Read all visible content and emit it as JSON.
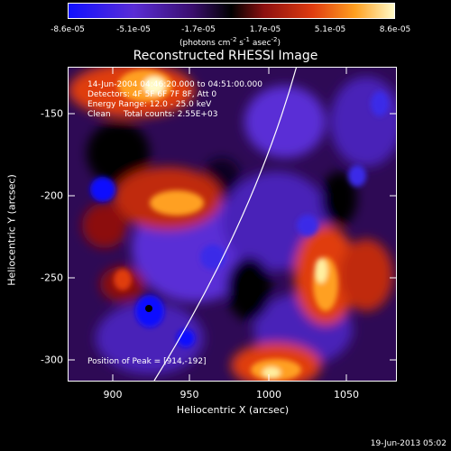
{
  "colorbar": {
    "ticks": [
      "-8.6e-05",
      "-5.1e-05",
      "-1.7e-05",
      "1.7e-05",
      "5.1e-05",
      "8.6e-05"
    ],
    "unit_prefix": "(photons cm",
    "unit_exp1": "-2",
    "unit_mid1": " s",
    "unit_exp2": "-1",
    "unit_mid2": " asec",
    "unit_exp3": "-2",
    "unit_suffix": ")"
  },
  "title": "Reconstructed RHESSI Image",
  "info": {
    "time_range": "14-Jun-2004 04:46:20.000 to 04:51:00.000",
    "detectors": "Detectors: 4F 5F 6F 7F 8F, Att 0",
    "energy_range": "Energy Range: 12.0 - 25.0 keV",
    "algorithm": "Clean     Total counts: 2.55E+03"
  },
  "peak_label": "Position of Peak = [914,-192]",
  "axes": {
    "xlabel": "Heliocentric X (arcsec)",
    "ylabel": "Heliocentric Y (arcsec)",
    "xticks": [
      "900",
      "950",
      "1000",
      "1050"
    ],
    "yticks": [
      "-150",
      "-200",
      "-250",
      "-300"
    ]
  },
  "timestamp": "19-Jun-2013 05:02",
  "colors": {
    "colormap": [
      "#1010ff",
      "#5a2dd6",
      "#3a0e6e",
      "#000000",
      "#8c1010",
      "#e03c10",
      "#ffa020",
      "#fffac8"
    ],
    "limb_line": "#ffffff"
  }
}
